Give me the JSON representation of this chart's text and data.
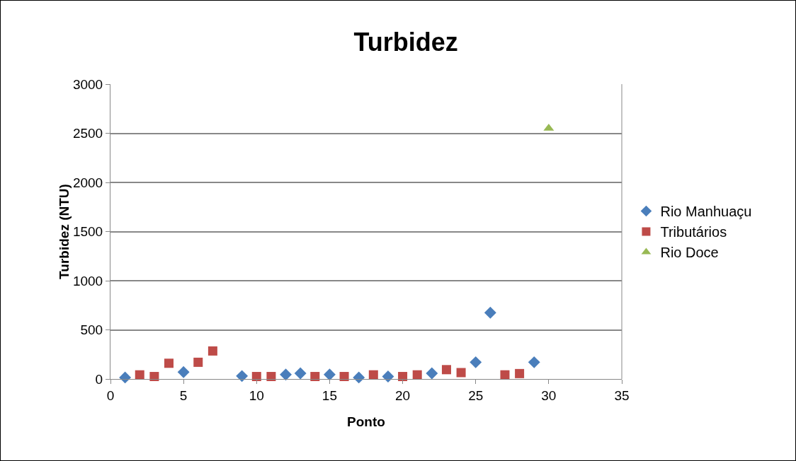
{
  "chart_data": {
    "type": "scatter",
    "title": "Turbidez",
    "xlabel": "Ponto",
    "ylabel": "Turbidez (NTU)",
    "xlim": [
      0,
      35
    ],
    "xticks": [
      0,
      5,
      10,
      15,
      20,
      25,
      30,
      35
    ],
    "ylim": [
      0,
      3000
    ],
    "yticks": [
      0,
      500,
      1000,
      1500,
      2000,
      2500,
      3000
    ],
    "grid": "y",
    "legend": "right",
    "series": [
      {
        "name": "Rio Manhuaçu",
        "color": "#4a7ebb",
        "marker": "diamond",
        "x": [
          1,
          5,
          9,
          12,
          13,
          15,
          17,
          19,
          22,
          25,
          26,
          29
        ],
        "values": [
          15,
          70,
          30,
          45,
          58,
          45,
          15,
          25,
          58,
          170,
          675,
          170
        ]
      },
      {
        "name": "Tributários",
        "color": "#be4b48",
        "marker": "square",
        "x": [
          2,
          3,
          4,
          6,
          7,
          10,
          11,
          14,
          16,
          18,
          20,
          21,
          23,
          24,
          27,
          28
        ],
        "values": [
          42,
          25,
          160,
          170,
          285,
          25,
          25,
          25,
          25,
          42,
          25,
          42,
          95,
          65,
          42,
          55
        ]
      },
      {
        "name": "Rio Doce",
        "color": "#98b954",
        "marker": "triangle",
        "x": [
          30
        ],
        "values": [
          2550
        ]
      }
    ]
  }
}
